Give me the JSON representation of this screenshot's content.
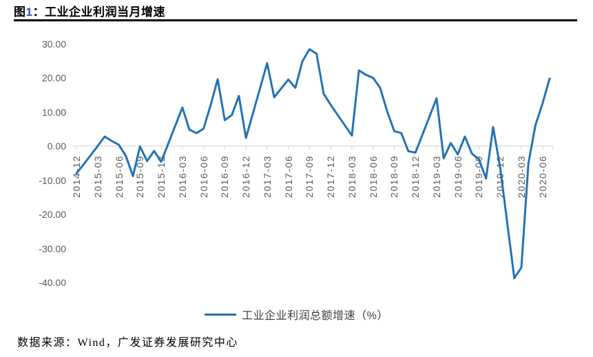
{
  "header": {
    "fig_label": "图",
    "fig_number": "1",
    "colon": "：",
    "title": "工业企业利润当月增速"
  },
  "legend": {
    "label": "工业企业利润总额增速（%）"
  },
  "footer": {
    "text": "数据来源：Wind，广发证券发展研究中心"
  },
  "colors": {
    "line_blue": "#2272b5",
    "axis_gray": "#d9d9d9",
    "tick_label_gray": "#595959",
    "figure_number_blue": "#1f5ca8"
  },
  "chart_data": {
    "type": "line",
    "title": "工业企业利润当月增速",
    "xlabel": "",
    "ylabel": "",
    "grid": false,
    "legend_position": "bottom",
    "ylim": [
      -40,
      30
    ],
    "y_ticks": [
      30,
      20,
      10,
      0,
      -10,
      -20,
      -30,
      -40
    ],
    "y_tick_labels": [
      "30.00",
      "20.00",
      "10.00",
      "0.00",
      "-10.00",
      "-20.00",
      "-30.00",
      "-40.00"
    ],
    "x_tick_labels": [
      "2014-12",
      "2015-03",
      "2015-06",
      "2015-09",
      "2015-12",
      "2016-03",
      "2016-06",
      "2016-09",
      "2016-12",
      "2017-03",
      "2017-06",
      "2017-09",
      "2017-12",
      "2018-03",
      "2018-06",
      "2018-09",
      "2018-12",
      "2019-03",
      "2019-06",
      "2019-09",
      "2019-12",
      "2020-03",
      "2020-06"
    ],
    "x_tick_every_n_points": 3,
    "x": [
      "2014-12",
      "2015-01",
      "2015-02",
      "2015-03",
      "2015-04",
      "2015-05",
      "2015-06",
      "2015-07",
      "2015-08",
      "2015-09",
      "2015-10",
      "2015-11",
      "2015-12",
      "2016-01",
      "2016-02",
      "2016-03",
      "2016-04",
      "2016-05",
      "2016-06",
      "2016-07",
      "2016-08",
      "2016-09",
      "2016-10",
      "2016-11",
      "2016-12",
      "2017-01",
      "2017-02",
      "2017-03",
      "2017-04",
      "2017-05",
      "2017-06",
      "2017-07",
      "2017-08",
      "2017-09",
      "2017-10",
      "2017-11",
      "2017-12",
      "2018-01",
      "2018-02",
      "2018-03",
      "2018-04",
      "2018-05",
      "2018-06",
      "2018-07",
      "2018-08",
      "2018-09",
      "2018-10",
      "2018-11",
      "2018-12",
      "2019-01",
      "2019-02",
      "2019-03",
      "2019-04",
      "2019-05",
      "2019-06",
      "2019-07",
      "2019-08",
      "2019-09",
      "2019-10",
      "2019-11",
      "2019-12",
      "2020-01",
      "2020-02",
      "2020-03",
      "2020-04",
      "2020-05",
      "2020-06",
      "2020-07"
    ],
    "series": [
      {
        "name": "工业企业利润总额增速（%）",
        "color": "#2272b5",
        "values": [
          -8.0,
          -5.4,
          -2.7,
          0.0,
          2.8,
          1.5,
          0.4,
          -2.9,
          -8.8,
          -0.1,
          -4.4,
          -1.4,
          -4.6,
          0.7,
          6.0,
          11.3,
          4.8,
          3.8,
          5.1,
          12.0,
          19.6,
          7.6,
          9.1,
          14.7,
          2.4,
          9.7,
          17.0,
          24.3,
          14.3,
          16.9,
          19.5,
          17.1,
          24.9,
          28.4,
          27.1,
          15.4,
          12.1,
          9.1,
          6.1,
          3.1,
          22.2,
          20.9,
          20.0,
          17.1,
          10.2,
          4.4,
          3.8,
          -1.5,
          -1.9,
          3.4,
          8.7,
          14.0,
          -3.6,
          0.9,
          -2.4,
          2.8,
          -2.2,
          -3.9,
          -9.5,
          5.6,
          -6.3,
          -22.5,
          -38.7,
          -35.6,
          -5.0,
          6.2,
          12.5,
          19.8
        ]
      }
    ]
  }
}
